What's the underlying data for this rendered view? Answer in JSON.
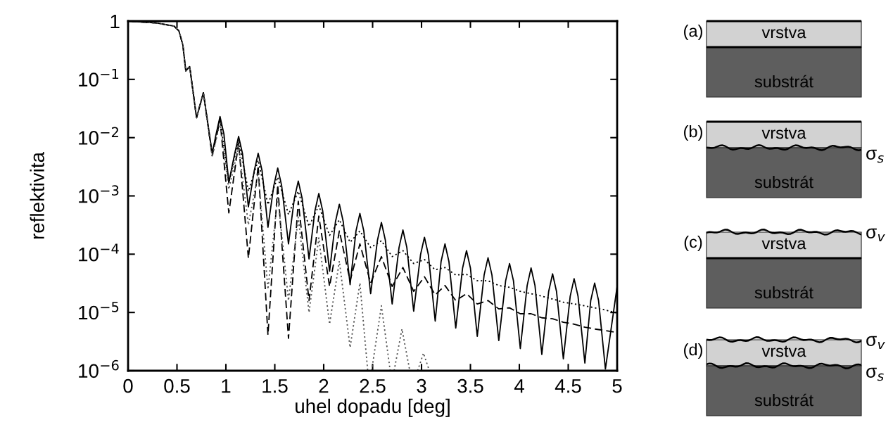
{
  "chart_data": [
    {
      "type": "line",
      "xlabel": "uhel dopadu [deg]",
      "ylabel": "reflektivita",
      "log": "y",
      "xlim": [
        0,
        5
      ],
      "ylim": [
        1e-06,
        1
      ],
      "xticks": [
        0,
        0.5,
        1,
        1.5,
        2,
        2.5,
        3,
        3.5,
        4,
        4.5,
        5
      ],
      "yticks": [
        1,
        {
          "value": 0.1,
          "label": "10$^{−1}$"
        },
        {
          "value": 0.01,
          "label": "10$^{−2}$"
        },
        {
          "value": 0.001,
          "label": "10$^{−3}$"
        },
        {
          "value": 0.0001,
          "label": "10$^{−4}$"
        },
        {
          "value": 1e-05,
          "label": "10$^{−5}$"
        },
        {
          "value": 1e-06,
          "label": "10$^{−6}$"
        }
      ],
      "x": [
        0,
        0.29,
        0.47,
        0.52,
        0.56,
        0.59,
        0.63,
        0.7,
        0.77,
        0.86,
        0.94,
        1.03,
        1.13,
        1.23,
        1.33,
        1.43,
        1.53,
        1.64,
        1.74,
        1.85,
        1.95,
        2.06,
        2.16,
        2.27,
        2.37,
        2.48,
        2.59,
        2.7,
        2.81,
        2.92,
        3.03,
        3.14,
        3.24,
        3.35,
        3.46,
        3.57,
        3.68,
        3.79,
        3.9,
        4.01,
        4.12,
        4.23,
        4.34,
        4.45,
        4.56,
        4.67,
        4.77,
        4.88,
        5.0
      ],
      "series": [
        {
          "color": "#000000",
          "line_style": "solid",
          "x": [
            0,
            0.29,
            0.47,
            0.52,
            0.56,
            0.59,
            0.63,
            0.7,
            0.77,
            0.86,
            0.9,
            0.94,
            0.98,
            1.03,
            1.09,
            1.13,
            1.17,
            1.23,
            1.29,
            1.33,
            1.37,
            1.43,
            1.49,
            1.53,
            1.57,
            1.64,
            1.7,
            1.74,
            1.78,
            1.85,
            1.91,
            1.95,
            1.99,
            2.06,
            2.12,
            2.16,
            2.2,
            2.27,
            2.33,
            2.37,
            2.41,
            2.48,
            2.55,
            2.59,
            2.63,
            2.7,
            2.77,
            2.81,
            2.85,
            2.92,
            2.99,
            3.03,
            3.07,
            3.14,
            3.2,
            3.24,
            3.28,
            3.35,
            3.42,
            3.46,
            3.5,
            3.57,
            3.64,
            3.68,
            3.72,
            3.79,
            3.86,
            3.9,
            3.94,
            4.01,
            4.08,
            4.12,
            4.16,
            4.23,
            4.3,
            4.34,
            4.38,
            4.45,
            4.52,
            4.56,
            4.6,
            4.67,
            4.73,
            4.77,
            4.81,
            4.88,
            5.0
          ],
          "values": [
            1,
            0.93,
            0.82,
            0.68,
            0.39,
            0.14,
            0.166,
            0.022,
            0.059,
            0.0054,
            0.0115,
            0.023,
            0.0115,
            0.0017,
            0.0053,
            0.0105,
            0.0053,
            0.00065,
            0.0027,
            0.0054,
            0.0027,
            0.00029,
            0.0015,
            0.003,
            0.0015,
            0.00015,
            0.0009,
            0.0018,
            0.0009,
            8.3e-05,
            0.00055,
            0.0011,
            0.00055,
            5.1e-05,
            0.00036,
            0.00072,
            0.00036,
            3e-05,
            0.00025,
            0.0005,
            0.00025,
            2.1e-05,
            0.000175,
            0.00035,
            0.000175,
            1.4e-05,
            0.00013,
            0.00026,
            0.00013,
            1.05e-05,
            9.8e-05,
            0.000195,
            9.8e-05,
            7.1e-06,
            7.5e-05,
            0.00015,
            7.5e-05,
            5.4e-06,
            5.8e-05,
            0.000115,
            5.8e-05,
            3.9e-06,
            4.4e-05,
            8.7e-05,
            4.4e-05,
            3.3e-06,
            3.5e-05,
            6.9e-05,
            3.5e-05,
            2.4e-06,
            2.9e-05,
            5.8e-05,
            2.9e-05,
            1.9e-06,
            2.3e-05,
            4.6e-05,
            2.3e-05,
            1.6e-06,
            1.9e-05,
            3.8e-05,
            1.9e-05,
            1.35e-06,
            1.6e-05,
            3.2e-05,
            1.6e-05,
            1.07e-06,
            2.8e-05
          ]
        },
        {
          "color": "#000000",
          "line_style": "dashed",
          "values": [
            1,
            0.93,
            0.82,
            0.68,
            0.39,
            0.14,
            0.166,
            0.022,
            0.059,
            0.0049,
            0.02,
            0.00051,
            0.0081,
            8.5e-05,
            0.0033,
            4.1e-06,
            0.00155,
            3.6e-06,
            0.00081,
            1.6e-05,
            0.00045,
            2.8e-05,
            0.00025,
            3.5e-05,
            0.00015,
            3.2e-05,
            9.1e-05,
            2.8e-05,
            5.9e-05,
            2.3e-05,
            4.1e-05,
            2e-05,
            2.9e-05,
            1.6e-05,
            2.1e-05,
            1.4e-05,
            1.6e-05,
            1.15e-05,
            1.2e-05,
            9.5e-06,
            9.5e-06,
            8.1e-06,
            7.8e-06,
            6.8e-06,
            6.3e-06,
            5.6e-06,
            5.2e-06,
            4.9e-06,
            4.5e-06
          ]
        },
        {
          "color": "#000000",
          "line_style": "dotted",
          "values": [
            1,
            0.93,
            0.82,
            0.68,
            0.39,
            0.14,
            0.166,
            0.022,
            0.059,
            0.0051,
            0.022,
            0.00166,
            0.0093,
            0.0012,
            0.0041,
            0.00071,
            0.0021,
            0.00048,
            0.0012,
            0.0003,
            0.00068,
            0.00021,
            0.00039,
            0.00016,
            0.00025,
            0.00013,
            0.00017,
            9.1e-05,
            0.000115,
            6.9e-05,
            8.1e-05,
            5.4e-05,
            5.9e-05,
            4.4e-05,
            4.5e-05,
            3.5e-05,
            3.5e-05,
            2.9e-05,
            2.7e-05,
            2.3e-05,
            2.1e-05,
            1.9e-05,
            1.7e-05,
            1.5e-05,
            1.4e-05,
            1.3e-05,
            1.2e-05,
            1.1e-05,
            9.8e-06
          ]
        },
        {
          "color": "#555555",
          "line_style": "dotted",
          "x": [
            0,
            0.29,
            0.47,
            0.52,
            0.56,
            0.59,
            0.63,
            0.7,
            0.77,
            0.86,
            0.94,
            1.03,
            1.13,
            1.23,
            1.33,
            1.43,
            1.53,
            1.64,
            1.74,
            1.85,
            1.95,
            2.06,
            2.16,
            2.27,
            2.37,
            2.45,
            2.47,
            2.49,
            2.59,
            2.68,
            2.7,
            2.72,
            2.8,
            2.88,
            2.92,
            2.96,
            3.02,
            3.08
          ],
          "values": [
            1,
            0.93,
            0.82,
            0.68,
            0.39,
            0.14,
            0.166,
            0.022,
            0.059,
            0.0047,
            0.018,
            0.0013,
            0.0071,
            0.00032,
            0.0025,
            2.5e-05,
            0.001,
            1.6e-05,
            0.00043,
            1e-05,
            0.00019,
            6.3e-06,
            7.6e-05,
            2.5e-06,
            3.2e-05,
            1e-06,
            null,
            1e-06,
            1.3e-05,
            1e-06,
            null,
            1e-06,
            5.2e-06,
            1e-06,
            null,
            1e-06,
            2e-06,
            1e-06
          ]
        }
      ]
    },
    {
      "type": "other",
      "annotations": [
        "(a)",
        "vrstva",
        "substrát",
        "(b)",
        "vrstva",
        "substrát",
        "σ$_{s}$",
        "(c)",
        "vrstva",
        "substrát",
        "σ$_{v}$",
        "(d)",
        "vrstva",
        "substrát",
        "σ$_{v}$",
        "σ$_{s}$"
      ]
    }
  ]
}
